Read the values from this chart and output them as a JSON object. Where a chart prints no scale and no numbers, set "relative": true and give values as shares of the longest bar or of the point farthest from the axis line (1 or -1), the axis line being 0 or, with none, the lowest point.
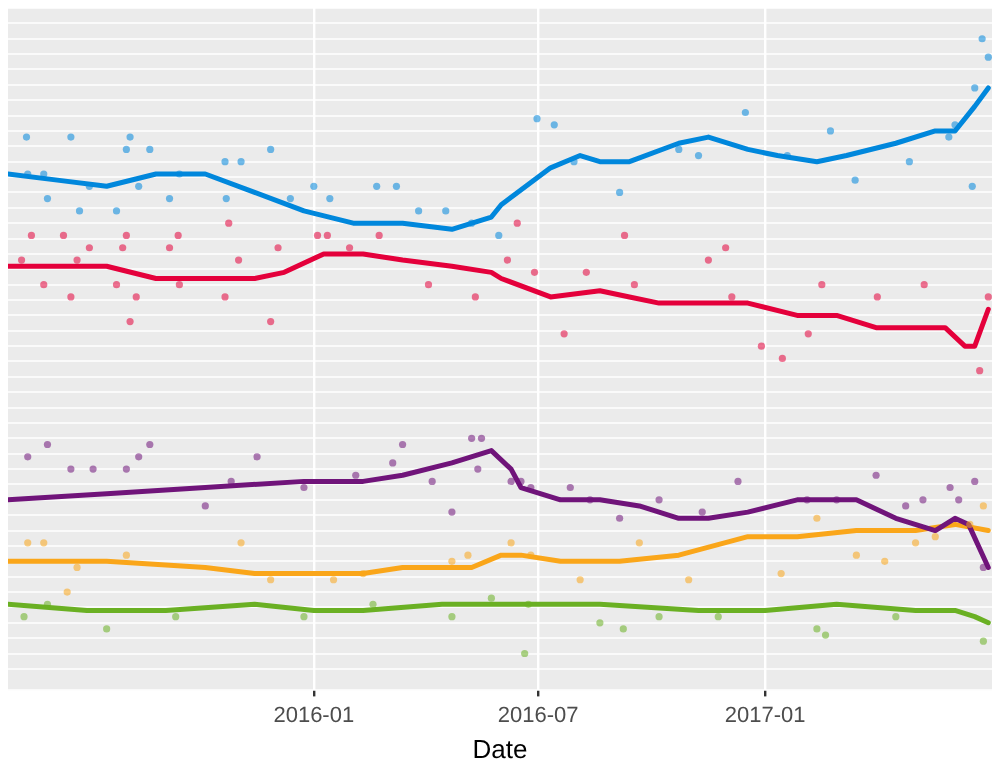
{
  "chart_data": {
    "type": "scatter",
    "xlabel": "Date",
    "relative": true,
    "grid": true,
    "legend": false,
    "marker": "circle",
    "xlim": [
      "2015-04-28",
      "2017-07-04"
    ],
    "xticks": [
      "2016-01",
      "2016-07",
      "2017-01"
    ],
    "series": [
      {
        "color": "#0087dc",
        "x": [
          "2015-05-13",
          "2015-06-18",
          "2015-08-05",
          "2015-08-02",
          "2015-08-21",
          "2015-05-14",
          "2015-05-27",
          "2015-05-30",
          "2015-06-25",
          "2015-07-03",
          "2015-07-25",
          "2015-08-12",
          "2015-09-06",
          "2015-09-14",
          "2015-10-21",
          "2015-11-03",
          "2015-10-22",
          "2015-11-27",
          "2015-12-13",
          "2016-01-01",
          "2016-01-14",
          "2016-02-21",
          "2016-03-08",
          "2016-03-26",
          "2016-04-17",
          "2016-05-08",
          "2016-05-30",
          "2016-06-30",
          "2016-07-14",
          "2016-07-30",
          "2016-09-05",
          "2016-10-23",
          "2016-11-08",
          "2016-12-16",
          "2017-01-19",
          "2017-02-23",
          "2017-03-15",
          "2017-04-28",
          "2017-05-30",
          "2017-06-04",
          "2017-06-20",
          "2017-06-26",
          "2017-07-01",
          "2017-06-18"
        ],
        "values": [
          0.84,
          0.84,
          0.84,
          0.82,
          0.82,
          0.78,
          0.78,
          0.74,
          0.72,
          0.76,
          0.72,
          0.76,
          0.74,
          0.78,
          0.8,
          0.8,
          0.74,
          0.82,
          0.74,
          0.76,
          0.74,
          0.76,
          0.76,
          0.72,
          0.72,
          0.7,
          0.68,
          0.87,
          0.86,
          0.8,
          0.75,
          0.82,
          0.81,
          0.88,
          0.81,
          0.85,
          0.77,
          0.8,
          0.84,
          0.86,
          0.92,
          1.0,
          0.97,
          0.76
        ]
      },
      {
        "color": "#e4003b",
        "x": [
          "2015-05-17",
          "2015-06-12",
          "2015-08-02",
          "2015-09-13",
          "2015-07-03",
          "2015-07-30",
          "2015-09-06",
          "2015-12-03",
          "2015-05-09",
          "2015-06-23",
          "2015-11-01",
          "2016-01-04",
          "2016-01-12",
          "2016-01-30",
          "2016-02-23",
          "2015-05-27",
          "2015-06-18",
          "2015-07-25",
          "2015-08-10",
          "2015-09-14",
          "2015-10-21",
          "2015-08-05",
          "2015-11-27",
          "2016-04-03",
          "2016-05-11",
          "2015-10-24",
          "2016-06-06",
          "2016-06-14",
          "2016-06-28",
          "2016-07-22",
          "2016-08-09",
          "2016-09-09",
          "2016-09-17",
          "2016-11-16",
          "2016-11-30",
          "2016-12-05",
          "2016-12-29",
          "2017-02-05",
          "2017-02-16",
          "2017-04-02",
          "2017-05-10",
          "2017-06-24",
          "2017-01-15",
          "2017-07-01"
        ],
        "values": [
          0.68,
          0.68,
          0.68,
          0.68,
          0.66,
          0.66,
          0.66,
          0.66,
          0.64,
          0.64,
          0.64,
          0.68,
          0.68,
          0.66,
          0.68,
          0.6,
          0.58,
          0.6,
          0.58,
          0.6,
          0.58,
          0.54,
          0.54,
          0.6,
          0.58,
          0.7,
          0.64,
          0.7,
          0.62,
          0.52,
          0.62,
          0.68,
          0.6,
          0.64,
          0.66,
          0.58,
          0.5,
          0.52,
          0.6,
          0.58,
          0.6,
          0.46,
          0.48,
          0.58
        ]
      },
      {
        "color": "#70147a",
        "x": [
          "2015-05-14",
          "2015-05-30",
          "2015-06-18",
          "2015-07-06",
          "2015-08-02",
          "2015-08-12",
          "2015-08-21",
          "2015-10-05",
          "2015-10-26",
          "2015-11-16",
          "2015-12-24",
          "2016-02-04",
          "2016-03-13",
          "2016-04-06",
          "2016-04-22",
          "2016-03-05",
          "2016-05-08",
          "2016-05-16",
          "2016-05-13",
          "2016-06-09",
          "2016-06-17",
          "2016-06-25",
          "2016-07-27",
          "2016-08-12",
          "2016-09-05",
          "2016-10-07",
          "2016-11-11",
          "2016-12-10",
          "2017-02-04",
          "2017-02-28",
          "2017-04-01",
          "2017-04-25",
          "2017-05-09",
          "2017-05-31",
          "2017-06-20",
          "2017-06-27",
          "2017-06-07"
        ],
        "values": [
          0.32,
          0.34,
          0.3,
          0.3,
          0.3,
          0.32,
          0.34,
          0.24,
          0.28,
          0.32,
          0.27,
          0.29,
          0.34,
          0.28,
          0.23,
          0.31,
          0.35,
          0.35,
          0.3,
          0.28,
          0.28,
          0.27,
          0.27,
          0.25,
          0.22,
          0.25,
          0.23,
          0.28,
          0.25,
          0.25,
          0.29,
          0.24,
          0.25,
          0.27,
          0.28,
          0.14,
          0.25
        ]
      },
      {
        "color": "#faa61a",
        "x": [
          "2015-05-14",
          "2015-05-27",
          "2015-06-15",
          "2015-06-23",
          "2015-08-02",
          "2015-11-03",
          "2015-11-27",
          "2016-01-17",
          "2016-02-10",
          "2016-04-22",
          "2016-05-05",
          "2016-06-09",
          "2016-06-25",
          "2016-08-04",
          "2016-09-21",
          "2016-10-31",
          "2017-01-14",
          "2017-02-12",
          "2017-03-16",
          "2017-04-08",
          "2017-05-03",
          "2017-05-19",
          "2017-06-16",
          "2017-06-27"
        ],
        "values": [
          0.18,
          0.18,
          0.1,
          0.14,
          0.16,
          0.18,
          0.12,
          0.12,
          0.13,
          0.15,
          0.16,
          0.18,
          0.16,
          0.12,
          0.18,
          0.12,
          0.13,
          0.22,
          0.16,
          0.15,
          0.18,
          0.19,
          0.21,
          0.24
        ]
      },
      {
        "color": "#6ab023",
        "x": [
          "2015-05-11",
          "2015-05-30",
          "2015-07-17",
          "2015-08-02",
          "2015-09-11",
          "2015-12-24",
          "2016-02-18",
          "2016-04-22",
          "2016-05-24",
          "2016-06-20",
          "2016-06-23",
          "2016-08-20",
          "2016-09-08",
          "2016-10-07",
          "2016-11-24",
          "2017-02-12",
          "2017-02-19",
          "2017-04-17",
          "2017-06-27"
        ],
        "values": [
          0.06,
          0.08,
          0.04,
          null,
          0.06,
          0.06,
          0.08,
          0.06,
          0.09,
          0.0,
          0.08,
          0.05,
          0.04,
          0.06,
          0.06,
          0.04,
          0.03,
          0.06,
          0.02
        ]
      },
      {
        "type": "line",
        "marker": "none",
        "color": "#0087dc",
        "x": [
          "2015-04-28",
          "2015-06-07",
          "2015-07-17",
          "2015-08-26",
          "2015-10-05",
          "2015-11-14",
          "2015-12-24",
          "2016-02-02",
          "2016-03-13",
          "2016-04-22",
          "2016-05-24",
          "2016-06-01",
          "2016-07-11",
          "2016-08-04",
          "2016-08-20",
          "2016-09-13",
          "2016-10-23",
          "2016-11-16",
          "2016-12-18",
          "2017-01-11",
          "2017-02-12",
          "2017-03-08",
          "2017-04-17",
          "2017-05-19",
          "2017-06-04",
          "2017-06-20",
          "2017-07-01"
        ],
        "values": [
          0.78,
          0.77,
          0.76,
          0.78,
          0.78,
          0.75,
          0.72,
          0.7,
          0.7,
          0.69,
          0.71,
          0.73,
          0.79,
          0.81,
          0.8,
          0.8,
          0.83,
          0.84,
          0.82,
          0.81,
          0.8,
          0.81,
          0.83,
          0.85,
          0.85,
          0.89,
          0.92
        ]
      },
      {
        "type": "line",
        "marker": "none",
        "color": "#e4003b",
        "x": [
          "2015-04-28",
          "2015-06-07",
          "2015-07-17",
          "2015-08-26",
          "2015-10-05",
          "2015-11-14",
          "2015-12-08",
          "2016-01-09",
          "2016-02-10",
          "2016-03-13",
          "2016-04-22",
          "2016-05-24",
          "2016-06-01",
          "2016-07-11",
          "2016-08-20",
          "2016-09-13",
          "2016-10-07",
          "2016-11-08",
          "2016-12-18",
          "2017-01-27",
          "2017-02-28",
          "2017-04-01",
          "2017-04-25",
          "2017-05-27",
          "2017-06-12",
          "2017-06-20",
          "2017-07-01"
        ],
        "values": [
          0.63,
          0.63,
          0.63,
          0.61,
          0.61,
          0.61,
          0.62,
          0.65,
          0.65,
          0.64,
          0.63,
          0.62,
          0.61,
          0.58,
          0.59,
          0.58,
          0.57,
          0.57,
          0.57,
          0.55,
          0.55,
          0.53,
          0.53,
          0.53,
          0.5,
          0.5,
          0.56
        ]
      },
      {
        "type": "line",
        "marker": "none",
        "color": "#70147a",
        "x": [
          "2015-04-28",
          "2015-07-17",
          "2015-10-05",
          "2015-12-24",
          "2016-02-10",
          "2016-03-13",
          "2016-04-22",
          "2016-05-24",
          "2016-06-09",
          "2016-06-17",
          "2016-07-19",
          "2016-08-20",
          "2016-09-21",
          "2016-10-23",
          "2016-11-16",
          "2016-12-18",
          "2017-01-27",
          "2017-03-16",
          "2017-04-17",
          "2017-05-19",
          "2017-06-04",
          "2017-06-15",
          "2017-07-01"
        ],
        "values": [
          0.25,
          0.26,
          0.27,
          0.28,
          0.28,
          0.29,
          0.31,
          0.33,
          0.3,
          0.27,
          0.25,
          0.25,
          0.24,
          0.22,
          0.22,
          0.23,
          0.25,
          0.25,
          0.22,
          0.2,
          0.22,
          0.21,
          0.14
        ]
      },
      {
        "type": "line",
        "marker": "none",
        "color": "#faa61a",
        "x": [
          "2015-04-28",
          "2015-07-17",
          "2015-10-05",
          "2015-11-14",
          "2016-01-01",
          "2016-02-10",
          "2016-03-13",
          "2016-04-22",
          "2016-05-08",
          "2016-06-01",
          "2016-06-17",
          "2016-07-19",
          "2016-09-05",
          "2016-10-23",
          "2016-12-18",
          "2017-01-27",
          "2017-03-16",
          "2017-05-03",
          "2017-06-04",
          "2017-07-01"
        ],
        "values": [
          0.15,
          0.15,
          0.14,
          0.13,
          0.13,
          0.13,
          0.14,
          0.14,
          0.14,
          0.16,
          0.16,
          0.15,
          0.15,
          0.16,
          0.19,
          0.19,
          0.2,
          0.2,
          0.21,
          0.2
        ]
      },
      {
        "type": "line",
        "marker": "none",
        "color": "#6ab023",
        "x": [
          "2015-04-28",
          "2015-07-01",
          "2015-09-03",
          "2015-11-14",
          "2016-01-01",
          "2016-02-10",
          "2016-04-14",
          "2016-05-24",
          "2016-06-17",
          "2016-08-20",
          "2016-11-08",
          "2017-01-01",
          "2017-02-28",
          "2017-05-03",
          "2017-06-04",
          "2017-06-20",
          "2017-07-01"
        ],
        "values": [
          0.08,
          0.07,
          0.07,
          0.08,
          0.07,
          0.07,
          0.08,
          0.08,
          0.08,
          0.08,
          0.07,
          0.07,
          0.08,
          0.07,
          0.07,
          0.06,
          0.05
        ]
      }
    ]
  }
}
